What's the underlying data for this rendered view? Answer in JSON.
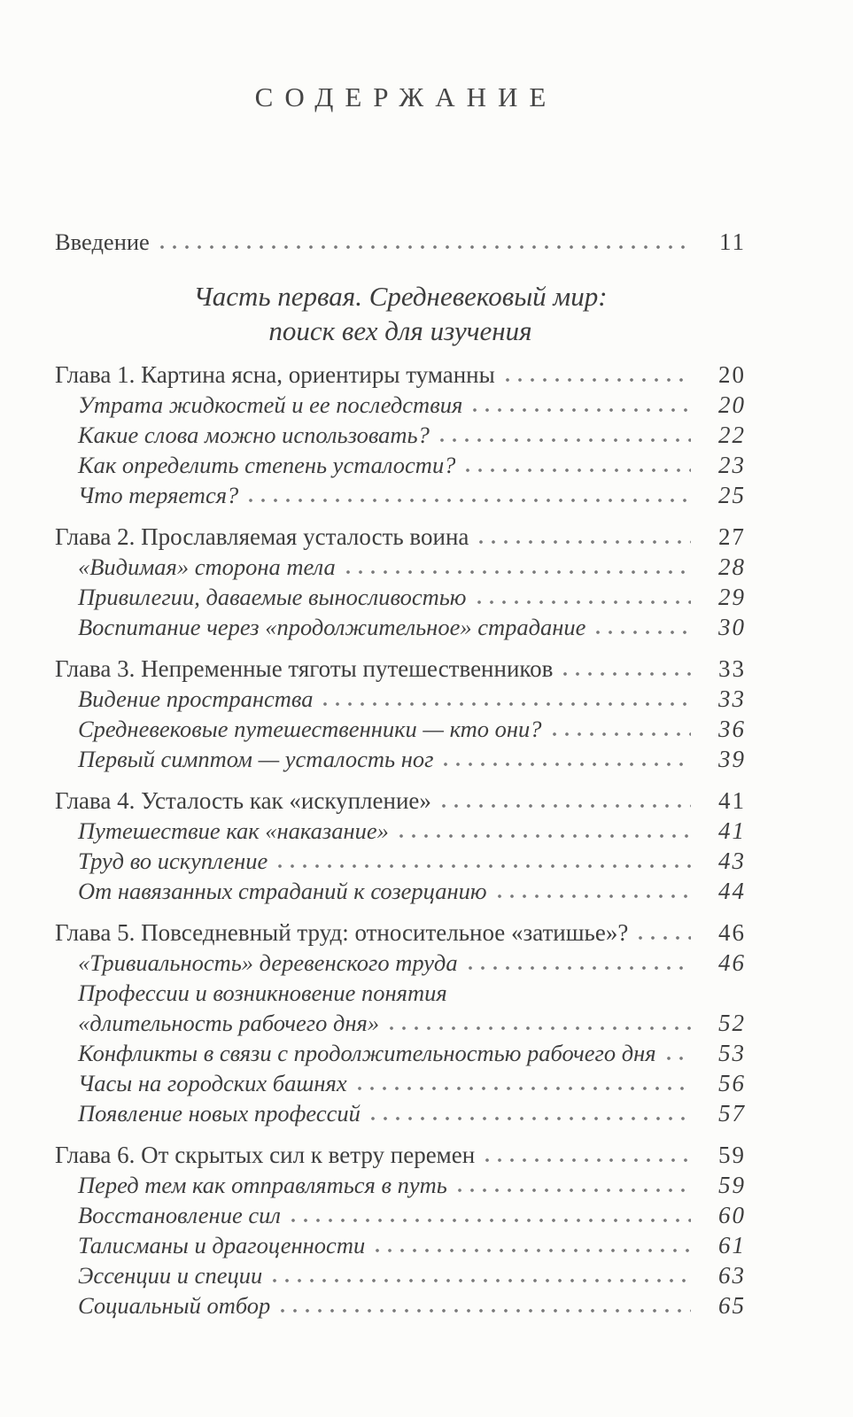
{
  "page": {
    "title": "СОДЕРЖАНИЕ",
    "intro": {
      "label": "Введение",
      "page": "11"
    },
    "part": {
      "line1": "Часть первая. Средневековый мир:",
      "line2": "поиск вех для изучения"
    },
    "chapters": [
      {
        "title": "Глава 1. Картина ясна, ориентиры туманны",
        "page": "20",
        "sections": [
          {
            "title": "Утрата жидкостей и ее последствия",
            "page": "20"
          },
          {
            "title": "Какие слова можно использовать?",
            "page": "22"
          },
          {
            "title": "Как определить степень усталости?",
            "page": "23"
          },
          {
            "title": "Что теряется?",
            "page": "25"
          }
        ]
      },
      {
        "title": "Глава 2. Прославляемая усталость воина",
        "page": "27",
        "sections": [
          {
            "title": "«Видимая» сторона тела",
            "page": "28"
          },
          {
            "title": "Привилегии, даваемые выносливостью",
            "page": "29"
          },
          {
            "title": "Воспитание через «продолжительное» страдание",
            "page": "30"
          }
        ]
      },
      {
        "title": "Глава 3. Непременные тяготы путешественников",
        "page": "33",
        "sections": [
          {
            "title": "Видение пространства",
            "page": "33"
          },
          {
            "title": "Средневековые путешественники — кто они?",
            "page": "36"
          },
          {
            "title": "Первый симптом — усталость ног",
            "page": "39"
          }
        ]
      },
      {
        "title": "Глава 4. Усталость как «искупление»",
        "page": "41",
        "sections": [
          {
            "title": "Путешествие как «наказание»",
            "page": "41"
          },
          {
            "title": "Труд во искупление",
            "page": "43"
          },
          {
            "title": "От навязанных страданий к созерцанию",
            "page": "44"
          }
        ]
      },
      {
        "title": "Глава 5. Повседневный труд: относительное «затишье»?",
        "page": "46",
        "sections": [
          {
            "title": "«Тривиальность» деревенского труда",
            "page": "46"
          },
          {
            "title_first_line": "Профессии и возникновение понятия",
            "title": "«длительность рабочего дня»",
            "page": "52"
          },
          {
            "title": "Конфликты в связи с продолжительностью рабочего дня",
            "page": "53"
          },
          {
            "title": "Часы на городских башнях",
            "page": "56"
          },
          {
            "title": "Появление новых профессий",
            "page": "57"
          }
        ]
      },
      {
        "title": "Глава 6. От скрытых сил к ветру перемен",
        "page": "59",
        "sections": [
          {
            "title": "Перед тем как отправляться в путь",
            "page": "59"
          },
          {
            "title": "Восстановление сил",
            "page": "60"
          },
          {
            "title": "Талисманы и драгоценности",
            "page": "61"
          },
          {
            "title": "Эссенции и специи",
            "page": "63"
          },
          {
            "title": "Социальный отбор",
            "page": "65"
          }
        ]
      }
    ]
  }
}
